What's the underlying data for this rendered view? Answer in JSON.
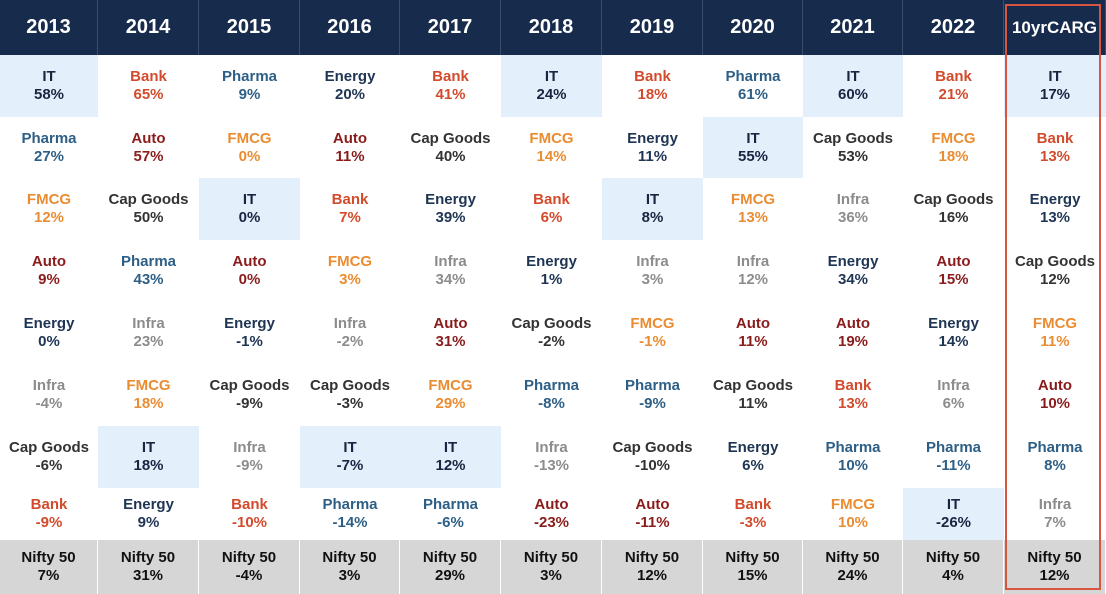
{
  "colors": {
    "IT": "#1b2440",
    "Bank": "#d24b2c",
    "Pharma": "#2d5f86",
    "Energy": "#1f3554",
    "FMCG": "#ea8c32",
    "Auto": "#8b1c1c",
    "Cap Goods": "#333333",
    "Infra": "#8c8c8c",
    "header_bg": "#172b4d",
    "highlight_bg": "#e3f0fc",
    "footer_bg": "#d6d6d6",
    "cagr_border": "#d9553f"
  },
  "chart_data": {
    "type": "table",
    "columns": [
      "2013",
      "2014",
      "2015",
      "2016",
      "2017",
      "2018",
      "2019",
      "2020",
      "2021",
      "2022",
      "10yr CARG"
    ],
    "rankings": [
      [
        [
          "IT",
          "58%"
        ],
        [
          "Pharma",
          "27%"
        ],
        [
          "FMCG",
          "12%"
        ],
        [
          "Auto",
          "9%"
        ],
        [
          "Energy",
          "0%"
        ],
        [
          "Infra",
          "-4%"
        ],
        [
          "Cap Goods",
          "-6%"
        ],
        [
          "Bank",
          "-9%"
        ]
      ],
      [
        [
          "Bank",
          "65%"
        ],
        [
          "Auto",
          "57%"
        ],
        [
          "Cap Goods",
          "50%"
        ],
        [
          "Pharma",
          "43%"
        ],
        [
          "Infra",
          "23%"
        ],
        [
          "FMCG",
          "18%"
        ],
        [
          "IT",
          "18%"
        ],
        [
          "Energy",
          "9%"
        ]
      ],
      [
        [
          "Pharma",
          "9%"
        ],
        [
          "FMCG",
          "0%"
        ],
        [
          "IT",
          "0%"
        ],
        [
          "Auto",
          "0%"
        ],
        [
          "Energy",
          "-1%"
        ],
        [
          "Cap Goods",
          "-9%"
        ],
        [
          "Infra",
          "-9%"
        ],
        [
          "Bank",
          "-10%"
        ]
      ],
      [
        [
          "Energy",
          "20%"
        ],
        [
          "Auto",
          "11%"
        ],
        [
          "Bank",
          "7%"
        ],
        [
          "FMCG",
          "3%"
        ],
        [
          "Infra",
          "-2%"
        ],
        [
          "Cap Goods",
          "-3%"
        ],
        [
          "IT",
          "-7%"
        ],
        [
          "Pharma",
          "-14%"
        ]
      ],
      [
        [
          "Bank",
          "41%"
        ],
        [
          "Cap Goods",
          "40%"
        ],
        [
          "Energy",
          "39%"
        ],
        [
          "Infra",
          "34%"
        ],
        [
          "Auto",
          "31%"
        ],
        [
          "FMCG",
          "29%"
        ],
        [
          "IT",
          "12%"
        ],
        [
          "Pharma",
          "-6%"
        ]
      ],
      [
        [
          "IT",
          "24%"
        ],
        [
          "FMCG",
          "14%"
        ],
        [
          "Bank",
          "6%"
        ],
        [
          "Energy",
          "1%"
        ],
        [
          "Cap Goods",
          "-2%"
        ],
        [
          "Pharma",
          "-8%"
        ],
        [
          "Infra",
          "-13%"
        ],
        [
          "Auto",
          "-23%"
        ]
      ],
      [
        [
          "Bank",
          "18%"
        ],
        [
          "Energy",
          "11%"
        ],
        [
          "IT",
          "8%"
        ],
        [
          "Infra",
          "3%"
        ],
        [
          "FMCG",
          "-1%"
        ],
        [
          "Pharma",
          "-9%"
        ],
        [
          "Cap Goods",
          "-10%"
        ],
        [
          "Auto",
          "-11%"
        ]
      ],
      [
        [
          "Pharma",
          "61%"
        ],
        [
          "IT",
          "55%"
        ],
        [
          "FMCG",
          "13%"
        ],
        [
          "Infra",
          "12%"
        ],
        [
          "Auto",
          "11%"
        ],
        [
          "Cap Goods",
          "11%"
        ],
        [
          "Energy",
          "6%"
        ],
        [
          "Bank",
          "-3%"
        ]
      ],
      [
        [
          "IT",
          "60%"
        ],
        [
          "Cap Goods",
          "53%"
        ],
        [
          "Infra",
          "36%"
        ],
        [
          "Energy",
          "34%"
        ],
        [
          "Auto",
          "19%"
        ],
        [
          "Bank",
          "13%"
        ],
        [
          "Pharma",
          "10%"
        ],
        [
          "FMCG",
          "10%"
        ]
      ],
      [
        [
          "Bank",
          "21%"
        ],
        [
          "FMCG",
          "18%"
        ],
        [
          "Cap Goods",
          "16%"
        ],
        [
          "Auto",
          "15%"
        ],
        [
          "Energy",
          "14%"
        ],
        [
          "Infra",
          "6%"
        ],
        [
          "Pharma",
          "-11%"
        ],
        [
          "IT",
          "-26%"
        ]
      ],
      [
        [
          "IT",
          "17%"
        ],
        [
          "Bank",
          "13%"
        ],
        [
          "Energy",
          "13%"
        ],
        [
          "Cap Goods",
          "12%"
        ],
        [
          "FMCG",
          "11%"
        ],
        [
          "Auto",
          "10%"
        ],
        [
          "Pharma",
          "8%"
        ],
        [
          "Infra",
          "7%"
        ]
      ]
    ],
    "benchmark": [
      [
        "Nifty 50",
        "7%"
      ],
      [
        "Nifty 50",
        "31%"
      ],
      [
        "Nifty 50",
        "-4%"
      ],
      [
        "Nifty  50",
        "3%"
      ],
      [
        "Nifty 50",
        "29%"
      ],
      [
        "Nifty 50",
        "3%"
      ],
      [
        "Nifty 50",
        "12%"
      ],
      [
        "Nifty 50",
        "15%"
      ],
      [
        "Nifty 50",
        "24%"
      ],
      [
        "Nifty 50",
        "4%"
      ],
      [
        "Nifty 50",
        "12%"
      ]
    ],
    "highlight_sector": "IT"
  }
}
